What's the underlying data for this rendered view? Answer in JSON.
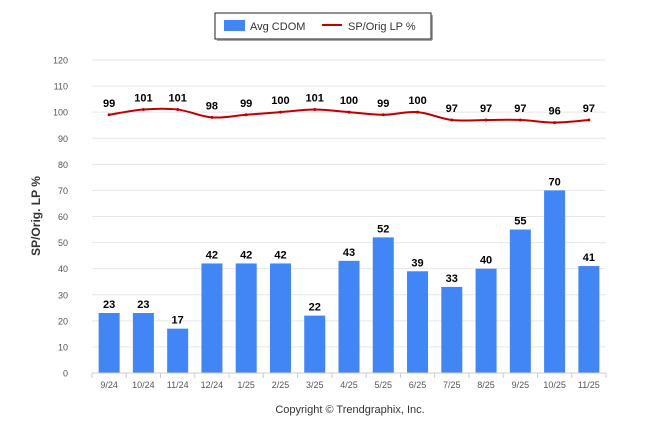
{
  "chart_data": {
    "type": "bar",
    "categories": [
      "9/24",
      "10/24",
      "11/24",
      "12/24",
      "1/25",
      "2/25",
      "3/25",
      "4/25",
      "5/25",
      "6/25",
      "7/25",
      "8/25",
      "9/25",
      "10/25",
      "11/25"
    ],
    "series": [
      {
        "name": "Avg CDOM",
        "type": "bar",
        "color": "#4285f4",
        "values": [
          23,
          23,
          17,
          42,
          42,
          42,
          22,
          43,
          52,
          39,
          33,
          40,
          55,
          70,
          41
        ]
      },
      {
        "name": "SP/Orig LP %",
        "type": "line",
        "color": "#c00000",
        "values": [
          99,
          101,
          101,
          98,
          99,
          100,
          101,
          100,
          99,
          100,
          97,
          97,
          97,
          96,
          97
        ]
      }
    ],
    "ylabel": "SP/Orig. LP %",
    "ylim": [
      0,
      120
    ],
    "yticks": [
      0,
      10,
      20,
      30,
      40,
      50,
      60,
      70,
      80,
      90,
      100,
      110,
      120
    ],
    "grid": true,
    "legend_position": "top-center"
  },
  "footer": {
    "copyright": "Copyright © Trendgraphix, Inc."
  }
}
